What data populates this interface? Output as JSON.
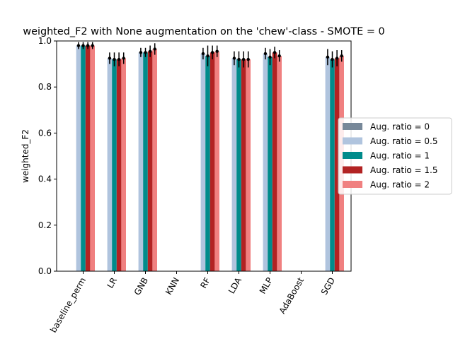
{
  "chart_data": {
    "type": "bar",
    "title": "weighted_F2 with None augmentation on the 'chew'-class - SMOTE = 0",
    "xlabel": "",
    "ylabel": "weighted_F2",
    "ylim": [
      0,
      1.0
    ],
    "yticks": [
      "0.0",
      "0.2",
      "0.4",
      "0.6",
      "0.8",
      "1.0"
    ],
    "categories": [
      "baseline_perm",
      "LR",
      "GNB",
      "KNN",
      "RF",
      "LDA",
      "MLP",
      "AdaBoost",
      "SGD"
    ],
    "legend_position": "right",
    "grid": false,
    "series": [
      {
        "name": "Aug. ratio = 0",
        "color": "#778899",
        "values": [
          0.0,
          0.0,
          0.0,
          0.0,
          0.0,
          0.0,
          0.0,
          0.0,
          0.0
        ],
        "errors": [
          0,
          0,
          0,
          0,
          0,
          0,
          0,
          0,
          0
        ]
      },
      {
        "name": "Aug. ratio = 0.5",
        "color": "#B0C4DE",
        "values": [
          0.98,
          0.925,
          0.95,
          0.0,
          0.945,
          0.925,
          0.945,
          0.0,
          0.93
        ],
        "errors": [
          0.015,
          0.025,
          0.02,
          0,
          0.025,
          0.03,
          0.025,
          0,
          0.035
        ]
      },
      {
        "name": "Aug. ratio = 1",
        "color": "#008B8B",
        "values": [
          0.98,
          0.92,
          0.95,
          0.0,
          0.935,
          0.92,
          0.93,
          0.0,
          0.92
        ],
        "errors": [
          0.015,
          0.03,
          0.02,
          0,
          0.045,
          0.035,
          0.035,
          0,
          0.035
        ]
      },
      {
        "name": "Aug. ratio = 1.5",
        "color": "#B22222",
        "values": [
          0.98,
          0.92,
          0.955,
          0.0,
          0.95,
          0.92,
          0.95,
          0.0,
          0.925
        ],
        "errors": [
          0.015,
          0.03,
          0.025,
          0,
          0.03,
          0.035,
          0.025,
          0,
          0.035
        ]
      },
      {
        "name": "Aug. ratio = 2",
        "color": "#F08080",
        "values": [
          0.98,
          0.925,
          0.965,
          0.0,
          0.955,
          0.92,
          0.935,
          0.0,
          0.935
        ],
        "errors": [
          0.015,
          0.025,
          0.025,
          0,
          0.025,
          0.035,
          0.025,
          0,
          0.025
        ]
      }
    ]
  }
}
